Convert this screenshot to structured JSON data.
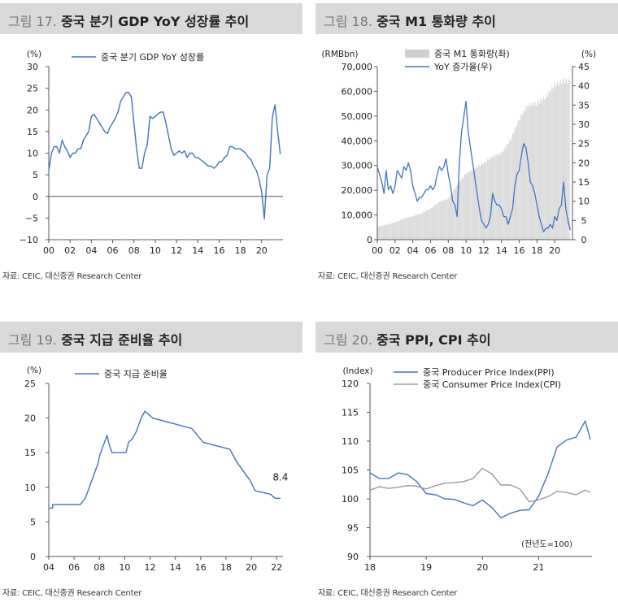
{
  "source_note": "자료: CEIC, 대신증권 Research Center",
  "colors": {
    "blue": "#3f74c4",
    "gray": "#9a9a9a",
    "bar": "#cfcfcf",
    "header_bg": "#d9d9d9"
  },
  "chart_data": [
    {
      "num": "그림 17.",
      "title": "중국 분기 GDP YoY 성장률 추이",
      "type": "line",
      "y_unit": "(%)",
      "ylim": [
        -10,
        30
      ],
      "yticks": [
        "30",
        "25",
        "20",
        "15",
        "10",
        "5",
        "0",
        "−5",
        "−10"
      ],
      "xlim": [
        2000,
        2022
      ],
      "xticks": [
        "00",
        "02",
        "04",
        "06",
        "08",
        "10",
        "12",
        "14",
        "16",
        "18",
        "20"
      ],
      "series": [
        {
          "name": "중국 분기 GDP YoY 성장률",
          "color": "#3f74c4",
          "x": [
            2000,
            2000.25,
            2000.5,
            2000.75,
            2001,
            2001.25,
            2001.5,
            2001.75,
            2002,
            2002.25,
            2002.5,
            2002.75,
            2003,
            2003.25,
            2003.5,
            2003.75,
            2004,
            2004.25,
            2004.5,
            2004.75,
            2005,
            2005.25,
            2005.5,
            2005.75,
            2006,
            2006.25,
            2006.5,
            2006.75,
            2007,
            2007.25,
            2007.5,
            2007.75,
            2008,
            2008.25,
            2008.5,
            2008.75,
            2009,
            2009.25,
            2009.5,
            2009.75,
            2010,
            2010.25,
            2010.5,
            2010.75,
            2011,
            2011.25,
            2011.5,
            2011.75,
            2012,
            2012.25,
            2012.5,
            2012.75,
            2013,
            2013.25,
            2013.5,
            2013.75,
            2014,
            2014.25,
            2014.5,
            2014.75,
            2015,
            2015.25,
            2015.5,
            2015.75,
            2016,
            2016.25,
            2016.5,
            2016.75,
            2017,
            2017.25,
            2017.5,
            2017.75,
            2018,
            2018.25,
            2018.5,
            2018.75,
            2019,
            2019.25,
            2019.5,
            2019.75,
            2020,
            2020.25,
            2020.5,
            2020.75,
            2021,
            2021.25,
            2021.5,
            2021.75
          ],
          "y": [
            6,
            10,
            11.5,
            11.5,
            10,
            13,
            11.5,
            10.5,
            9,
            10,
            10,
            11,
            11,
            13,
            14,
            15,
            18.5,
            19,
            18,
            17,
            16,
            15,
            14.5,
            16,
            17,
            18,
            19.5,
            22,
            23,
            24,
            24,
            23,
            17,
            11,
            6.5,
            6.5,
            10,
            12,
            18.5,
            18,
            18.5,
            19,
            19.5,
            19.5,
            17,
            14,
            11,
            9.5,
            10,
            10.5,
            10,
            10.5,
            9,
            10,
            10,
            9,
            9,
            8.5,
            8,
            7.5,
            7,
            7,
            6.5,
            7,
            8,
            8,
            9,
            9.5,
            11.5,
            11.5,
            11,
            11,
            11,
            10.5,
            10,
            9,
            8.5,
            7,
            6,
            4,
            1,
            -5.2,
            4.9,
            6.5,
            18.3,
            21.2,
            15,
            9.8
          ]
        }
      ]
    },
    {
      "num": "그림 18.",
      "title": "중국 M1 통화량 추이",
      "type": "bar+line",
      "y_unit_left": "(RMBbn)",
      "y_unit_right": "(%)",
      "ylim_left": [
        0,
        70000
      ],
      "ylim_right": [
        0,
        45
      ],
      "yticks_left": [
        "70,000",
        "60,000",
        "50,000",
        "40,000",
        "30,000",
        "20,000",
        "10,000",
        "0"
      ],
      "yticks_right": [
        "45",
        "40",
        "35",
        "30",
        "25",
        "20",
        "15",
        "10",
        "5",
        "0"
      ],
      "xlim": [
        2000,
        2022
      ],
      "xticks": [
        "00",
        "02",
        "04",
        "06",
        "08",
        "10",
        "12",
        "14",
        "16",
        "18",
        "20"
      ],
      "series": [
        {
          "name": "중국 M1 통화량(좌)",
          "kind": "bar",
          "axis": "left",
          "color": "#cfcfcf",
          "x": [
            2000,
            2001,
            2002,
            2003,
            2004,
            2005,
            2006,
            2007,
            2008,
            2009,
            2010,
            2011,
            2012,
            2013,
            2014,
            2015,
            2016,
            2017,
            2018,
            2019,
            2020,
            2021,
            2021.75
          ],
          "y": [
            5000,
            6000,
            7000,
            8500,
            9500,
            10700,
            12600,
            15300,
            16600,
            22100,
            26700,
            28900,
            30900,
            33700,
            34900,
            40100,
            48700,
            54400,
            55200,
            57600,
            62600,
            64000,
            64700
          ]
        },
        {
          "name": "YoY 증가율(우)",
          "kind": "line",
          "axis": "right",
          "color": "#3f74c4",
          "x": [
            2000,
            2000.25,
            2000.5,
            2000.75,
            2001,
            2001.25,
            2001.5,
            2001.75,
            2002,
            2002.25,
            2002.5,
            2002.75,
            2003,
            2003.25,
            2003.5,
            2003.75,
            2004,
            2004.25,
            2004.5,
            2004.75,
            2005,
            2005.25,
            2005.5,
            2005.75,
            2006,
            2006.25,
            2006.5,
            2006.75,
            2007,
            2007.25,
            2007.5,
            2007.75,
            2008,
            2008.25,
            2008.5,
            2008.75,
            2009,
            2009.25,
            2009.5,
            2009.75,
            2010,
            2010.25,
            2010.5,
            2010.75,
            2011,
            2011.25,
            2011.5,
            2011.75,
            2012,
            2012.25,
            2012.5,
            2012.75,
            2013,
            2013.25,
            2013.5,
            2013.75,
            2014,
            2014.25,
            2014.5,
            2014.75,
            2015,
            2015.25,
            2015.5,
            2015.75,
            2016,
            2016.25,
            2016.5,
            2016.75,
            2017,
            2017.25,
            2017.5,
            2017.75,
            2018,
            2018.25,
            2018.5,
            2018.75,
            2019,
            2019.25,
            2019.5,
            2019.75,
            2020,
            2020.25,
            2020.5,
            2020.75,
            2021,
            2021.25,
            2021.5,
            2021.75
          ],
          "y": [
            19,
            17,
            15,
            12,
            18,
            13,
            14,
            12,
            14,
            18,
            17,
            16,
            19,
            18,
            20,
            18,
            14,
            12,
            10,
            11,
            11,
            12,
            13,
            13,
            14,
            13,
            14,
            17,
            19,
            18,
            19,
            21,
            17,
            14,
            10,
            9,
            6,
            20,
            28,
            32,
            36,
            28,
            24,
            20,
            16,
            12,
            8,
            5,
            4,
            3,
            4,
            6,
            12,
            10,
            9,
            9,
            8,
            6,
            6,
            4,
            6,
            8,
            14,
            17,
            18,
            22,
            25,
            24,
            20,
            15,
            14,
            12,
            9,
            6,
            4,
            2,
            3,
            3,
            4,
            3,
            6,
            5,
            8,
            9,
            15,
            8,
            5,
            2.5
          ]
        }
      ]
    },
    {
      "num": "그림 19.",
      "title": "중국 지급 준비율 추이",
      "type": "line",
      "y_unit": "(%)",
      "ylim": [
        0,
        25
      ],
      "yticks": [
        "25",
        "20",
        "15",
        "10",
        "5",
        "0"
      ],
      "xlim": [
        2004,
        2022.5
      ],
      "xticks": [
        "04",
        "06",
        "08",
        "10",
        "12",
        "14",
        "16",
        "18",
        "20",
        "22"
      ],
      "annotation": "8.4",
      "series": [
        {
          "name": "중국 지급 준비율",
          "color": "#3f74c4",
          "x": [
            2004,
            2004.3,
            2004.3,
            2006.5,
            2006.9,
            2007.1,
            2007.3,
            2007.5,
            2007.7,
            2007.9,
            2008.0,
            2008.2,
            2008.4,
            2008.6,
            2008.8,
            2009.0,
            2010.1,
            2010.3,
            2010.6,
            2010.9,
            2011.1,
            2011.3,
            2011.6,
            2011.9,
            2012.2,
            2015.3,
            2016.2,
            2018.3,
            2018.6,
            2018.9,
            2019.1,
            2019.5,
            2019.9,
            2020.3,
            2021.5,
            2021.9,
            2022.3
          ],
          "y": [
            7,
            7,
            7.5,
            7.5,
            8.5,
            9.5,
            10.5,
            11.5,
            12.5,
            13.5,
            14.5,
            15.5,
            16.5,
            17.5,
            16,
            15,
            15,
            16.5,
            17,
            18,
            19,
            20,
            21,
            20.5,
            20,
            18.5,
            16.5,
            15.5,
            14.5,
            13.5,
            13,
            12,
            11,
            9.5,
            9,
            8.4,
            8.4
          ]
        }
      ]
    },
    {
      "num": "그림 20.",
      "title": "중국 PPI, CPI 추이",
      "type": "line",
      "y_unit": "(Index)",
      "ylim": [
        90,
        120
      ],
      "yticks": [
        "120",
        "115",
        "110",
        "105",
        "100",
        "95",
        "90"
      ],
      "xlim": [
        2018,
        2021.95
      ],
      "xticks": [
        "18",
        "19",
        "20",
        "21"
      ],
      "note": "(전년도=100)",
      "series": [
        {
          "name": "중국 Producer Price Index(PPI)",
          "color": "#3f74c4",
          "x": [
            2018,
            2018.17,
            2018.33,
            2018.5,
            2018.67,
            2018.83,
            2019,
            2019.17,
            2019.33,
            2019.5,
            2019.67,
            2019.83,
            2020,
            2020.17,
            2020.33,
            2020.5,
            2020.67,
            2020.83,
            2021,
            2021.17,
            2021.33,
            2021.5,
            2021.67,
            2021.83,
            2021.92
          ],
          "y": [
            104.5,
            103.5,
            103.5,
            104.5,
            104.2,
            103,
            100.9,
            100.7,
            100,
            99.9,
            99.3,
            98.8,
            99.8,
            98.5,
            96.7,
            97.5,
            98,
            98.1,
            100.4,
            104.4,
            109,
            110.2,
            110.7,
            113.5,
            110.3
          ]
        },
        {
          "name": "중국 Consumer Price Index(CPI)",
          "color": "#9a9a9a",
          "x": [
            2018,
            2018.17,
            2018.33,
            2018.5,
            2018.67,
            2018.83,
            2019,
            2019.17,
            2019.33,
            2019.5,
            2019.67,
            2019.83,
            2020,
            2020.17,
            2020.33,
            2020.5,
            2020.67,
            2020.83,
            2021,
            2021.17,
            2021.33,
            2021.5,
            2021.67,
            2021.83,
            2021.92
          ],
          "y": [
            101.5,
            102.1,
            101.8,
            102,
            102.3,
            102.2,
            101.7,
            102.3,
            102.7,
            102.8,
            103,
            103.5,
            105.3,
            104.3,
            102.4,
            102.4,
            101.7,
            99.5,
            99.8,
            100.4,
            101.3,
            101.1,
            100.7,
            101.5,
            101.1
          ]
        }
      ]
    }
  ]
}
